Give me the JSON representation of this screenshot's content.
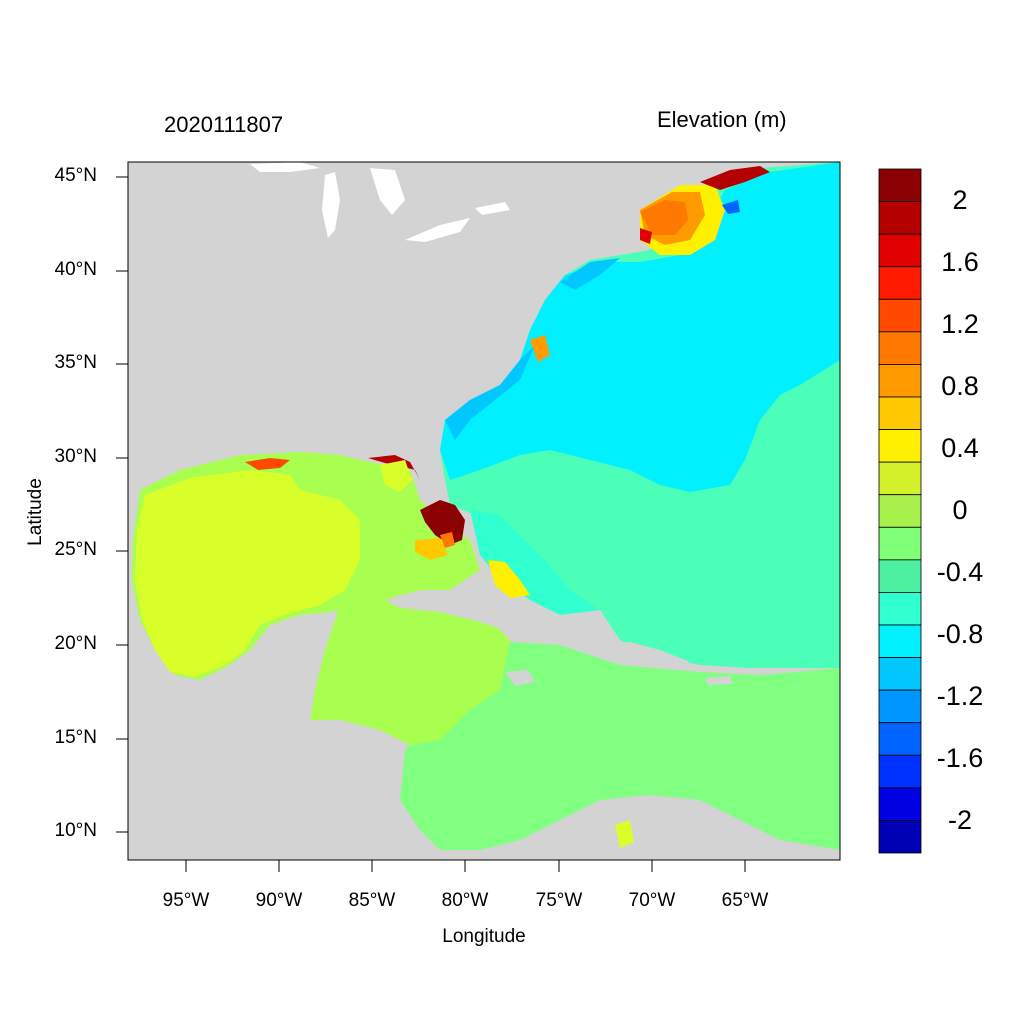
{
  "header": {
    "date_label": "2020111807",
    "variable_label": "Elevation (m)"
  },
  "axes": {
    "y_label": "Latitude",
    "x_label": "Longitude",
    "lat_ticks": [
      "45°N",
      "40°N",
      "35°N",
      "30°N",
      "25°N",
      "20°N",
      "15°N",
      "10°N"
    ],
    "lon_ticks": [
      "95°W",
      "90°W",
      "85°W",
      "80°W",
      "75°W",
      "70°W",
      "65°W"
    ]
  },
  "colorbar": {
    "labels": [
      "2",
      "1.6",
      "1.2",
      "0.8",
      "0.4",
      "0",
      "-0.4",
      "-0.8",
      "-1.2",
      "-1.6",
      "-2"
    ],
    "colors": [
      "#8b0000",
      "#b40000",
      "#e00000",
      "#ff1a00",
      "#ff4a00",
      "#ff7800",
      "#ff9a00",
      "#ffc800",
      "#fff000",
      "#d4f02a",
      "#a8f04c",
      "#80ff78",
      "#4cf0a0",
      "#30ffd0",
      "#00f0ff",
      "#00c8ff",
      "#0096ff",
      "#0064ff",
      "#0032ff",
      "#0000e0",
      "#0000b4"
    ]
  },
  "map_colors": {
    "land": "#d3d3d3",
    "gulf": "#d8ff2a",
    "caribbean_west": "#a8ff50",
    "caribbean_east": "#80ff80",
    "atlantic": "#4cffb8",
    "shelf": "#00f0ff",
    "nearshore": "#00c8ff",
    "surge_max": "#8b0000"
  }
}
